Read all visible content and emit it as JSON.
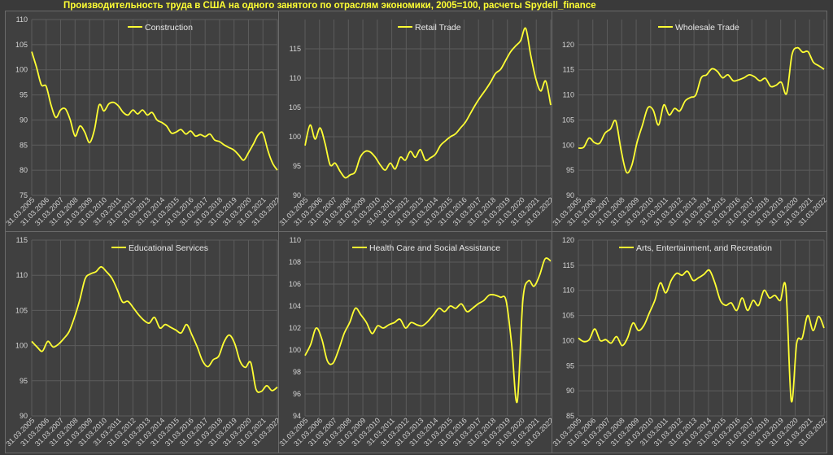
{
  "title": "Производительность труда в США на одного занятого по отраслям экономики, 2005=100, расчеты Spydell_finance",
  "colors": {
    "background": "#3a3a3a",
    "panel": "#404040",
    "grid": "#5c5c5c",
    "line": "#ffff33",
    "text": "#d4d4d4"
  },
  "chart_data": [
    {
      "type": "line",
      "series": [
        {
          "name": "Construction",
          "values": [
            103.6,
            100.5,
            97,
            96.7,
            93,
            90.5,
            92,
            92.2,
            90,
            86.8,
            88.8,
            87.6,
            85.5,
            88,
            93,
            91.8,
            93.2,
            93.5,
            92.8,
            91.5,
            91,
            92,
            91.2,
            92,
            91,
            91.5,
            90,
            89.5,
            88.8,
            87.4,
            87.6,
            88.1,
            87.2,
            87.8,
            86.8,
            87.1,
            86.7,
            87.2,
            86,
            85.7,
            85,
            84.5,
            84,
            83,
            82,
            83.5,
            85.2,
            87,
            87.4,
            84,
            81.4,
            80
          ]
        }
      ],
      "x_ticks": [
        "31.03.2005",
        "31.03.2006",
        "31.03.2007",
        "31.03.2008",
        "31.03.2009",
        "31.03.2010",
        "31.03.2011",
        "31.03.2012",
        "31.03.2013",
        "31.03.2014",
        "31.03.2015",
        "31.03.2016",
        "31.03.2017",
        "31.03.2018",
        "31.03.2019",
        "31.03.2020",
        "31.03.2021",
        "31.03.2022"
      ],
      "y_ticks": [
        "75",
        "80",
        "85",
        "90",
        "95",
        "100",
        "105",
        "110"
      ],
      "ylim": [
        75,
        110
      ]
    },
    {
      "type": "line",
      "series": [
        {
          "name": "Retail Trade",
          "values": [
            98.5,
            102,
            99.6,
            101.5,
            98.8,
            95.2,
            95.5,
            94.1,
            93,
            93.5,
            94,
            96.5,
            97.5,
            97.4,
            96.5,
            95.2,
            94.3,
            95.5,
            94.5,
            96.5,
            96,
            97.5,
            96.5,
            97.8,
            96,
            96.4,
            97,
            98.5,
            99.3,
            100,
            100.5,
            101.5,
            102.5,
            104,
            105.5,
            106.8,
            108,
            109.3,
            110.8,
            111.5,
            113,
            114.5,
            115.5,
            116.4,
            118.5,
            114,
            110,
            107.8,
            109.5,
            105.4
          ]
        }
      ],
      "x_ticks": [
        "31.03.2005",
        "31.03.2006",
        "31.03.2007",
        "31.03.2008",
        "31.03.2009",
        "31.03.2010",
        "31.03.2011",
        "31.03.2012",
        "31.03.2013",
        "31.03.2014",
        "31.03.2015",
        "31.03.2016",
        "31.03.2017",
        "31.03.2018",
        "31.03.2019",
        "31.03.2020",
        "31.03.2021",
        "31.03.2022"
      ],
      "y_ticks": [
        "90",
        "95",
        "100",
        "105",
        "110",
        "115"
      ],
      "ylim": [
        90,
        120
      ]
    },
    {
      "type": "line",
      "series": [
        {
          "name": "Wholesale Trade",
          "values": [
            99.4,
            99.6,
            101.4,
            100.5,
            100.4,
            102.4,
            103.2,
            104.8,
            99,
            94.6,
            96,
            100.6,
            104,
            107.4,
            107,
            104,
            108,
            106,
            107.3,
            106.8,
            108.8,
            109.5,
            110,
            113.4,
            114,
            115.2,
            114.7,
            113.4,
            114,
            112.8,
            113,
            113.4,
            114,
            113.6,
            112.8,
            113.3,
            111.7,
            111.9,
            112.5,
            110.3,
            118,
            119.4,
            118.5,
            118.6,
            116.5,
            115.8,
            115.1
          ]
        }
      ],
      "x_ticks": [
        "31.03.2005",
        "31.03.2006",
        "31.03.2007",
        "31.03.2008",
        "31.03.2009",
        "31.03.2010",
        "31.03.2011",
        "31.03.2012",
        "31.03.2013",
        "31.03.2014",
        "31.03.2015",
        "31.03.2016",
        "31.03.2017",
        "31.03.2018",
        "31.03.2019",
        "31.03.2020",
        "31.03.2021",
        "31.03.2022"
      ],
      "y_ticks": [
        "90",
        "95",
        "100",
        "105",
        "110",
        "115",
        "120"
      ],
      "ylim": [
        90,
        125
      ]
    },
    {
      "type": "line",
      "series": [
        {
          "name": "Educational Services",
          "values": [
            100.6,
            99.8,
            99.2,
            100.6,
            99.8,
            100.2,
            101,
            102,
            104,
            106.5,
            109.5,
            110.2,
            110.5,
            111.2,
            110.5,
            109.6,
            108,
            106.2,
            106.3,
            105.4,
            104.4,
            103.6,
            103.2,
            104,
            102.5,
            103,
            102.6,
            102.2,
            101.8,
            103,
            101.5,
            99.8,
            97.8,
            97,
            98,
            98.5,
            100.5,
            101.5,
            100.3,
            97.8,
            96.9,
            97.6,
            93.8,
            93.5,
            94.3,
            93.6,
            94.1
          ]
        }
      ],
      "x_ticks": [
        "31.03.2005",
        "31.03.2006",
        "31.03.2007",
        "31.03.2008",
        "31.03.2009",
        "31.03.2010",
        "31.03.2011",
        "31.03.2012",
        "31.03.2013",
        "31.03.2014",
        "31.03.2015",
        "31.03.2016",
        "31.03.2017",
        "31.03.2018",
        "31.03.2019",
        "31.03.2020",
        "31.03.2021",
        "31.03.2022"
      ],
      "y_ticks": [
        "90",
        "95",
        "100",
        "105",
        "110",
        "115"
      ],
      "ylim": [
        90,
        115
      ]
    },
    {
      "type": "line",
      "series": [
        {
          "name": "Health Care and Social Assistance",
          "values": [
            99.5,
            100.5,
            102,
            101,
            99,
            98.8,
            100,
            101.5,
            102.5,
            103.8,
            103.2,
            102.5,
            101.5,
            102.2,
            102,
            102.3,
            102.5,
            102.8,
            102,
            102.5,
            102.3,
            102.2,
            102.6,
            103.2,
            103.8,
            103.5,
            104,
            103.8,
            104.2,
            103.5,
            103.8,
            104.2,
            104.5,
            105,
            105,
            104.8,
            104.5,
            100.5,
            95.3,
            104.5,
            106.3,
            105.8,
            106.8,
            108.3,
            108.1
          ]
        }
      ],
      "x_ticks": [
        "31.03.2005",
        "31.03.2006",
        "31.03.2007",
        "31.03.2008",
        "31.03.2009",
        "31.03.2010",
        "31.03.2011",
        "31.03.2012",
        "31.03.2013",
        "31.03.2014",
        "31.03.2015",
        "31.03.2016",
        "31.03.2017",
        "31.03.2018",
        "31.03.2019",
        "31.03.2020",
        "31.03.2021",
        "31.03.2022"
      ],
      "y_ticks": [
        "94",
        "96",
        "98",
        "100",
        "102",
        "104",
        "106",
        "108",
        "110"
      ],
      "ylim": [
        94,
        110
      ]
    },
    {
      "type": "line",
      "series": [
        {
          "name": "Arts, Entertainment, and Recreation",
          "values": [
            100.5,
            99.8,
            100.2,
            102.3,
            100,
            100.2,
            99.5,
            100.8,
            99,
            100.5,
            103.5,
            102,
            103,
            105.5,
            108,
            111.5,
            109.5,
            112,
            113.4,
            113,
            113.8,
            112,
            112.5,
            113.2,
            114,
            111.5,
            108,
            107,
            107.5,
            106,
            108.5,
            106,
            108,
            107,
            110,
            108.5,
            109,
            108,
            110.5,
            88,
            99.5,
            100.5,
            105,
            102,
            104.8,
            102.5
          ]
        }
      ],
      "x_ticks": [
        "31.03.2005",
        "31.03.2006",
        "31.03.2007",
        "31.03.2008",
        "31.03.2009",
        "31.03.2010",
        "31.03.2011",
        "31.03.2012",
        "31.03.2013",
        "31.03.2014",
        "31.03.2015",
        "31.03.2016",
        "31.03.2017",
        "31.03.2018",
        "31.03.2019",
        "31.03.2020",
        "31.03.2021",
        "31.03.2022"
      ],
      "y_ticks": [
        "85",
        "90",
        "95",
        "100",
        "105",
        "110",
        "115",
        "120"
      ],
      "ylim": [
        85,
        120
      ]
    }
  ]
}
